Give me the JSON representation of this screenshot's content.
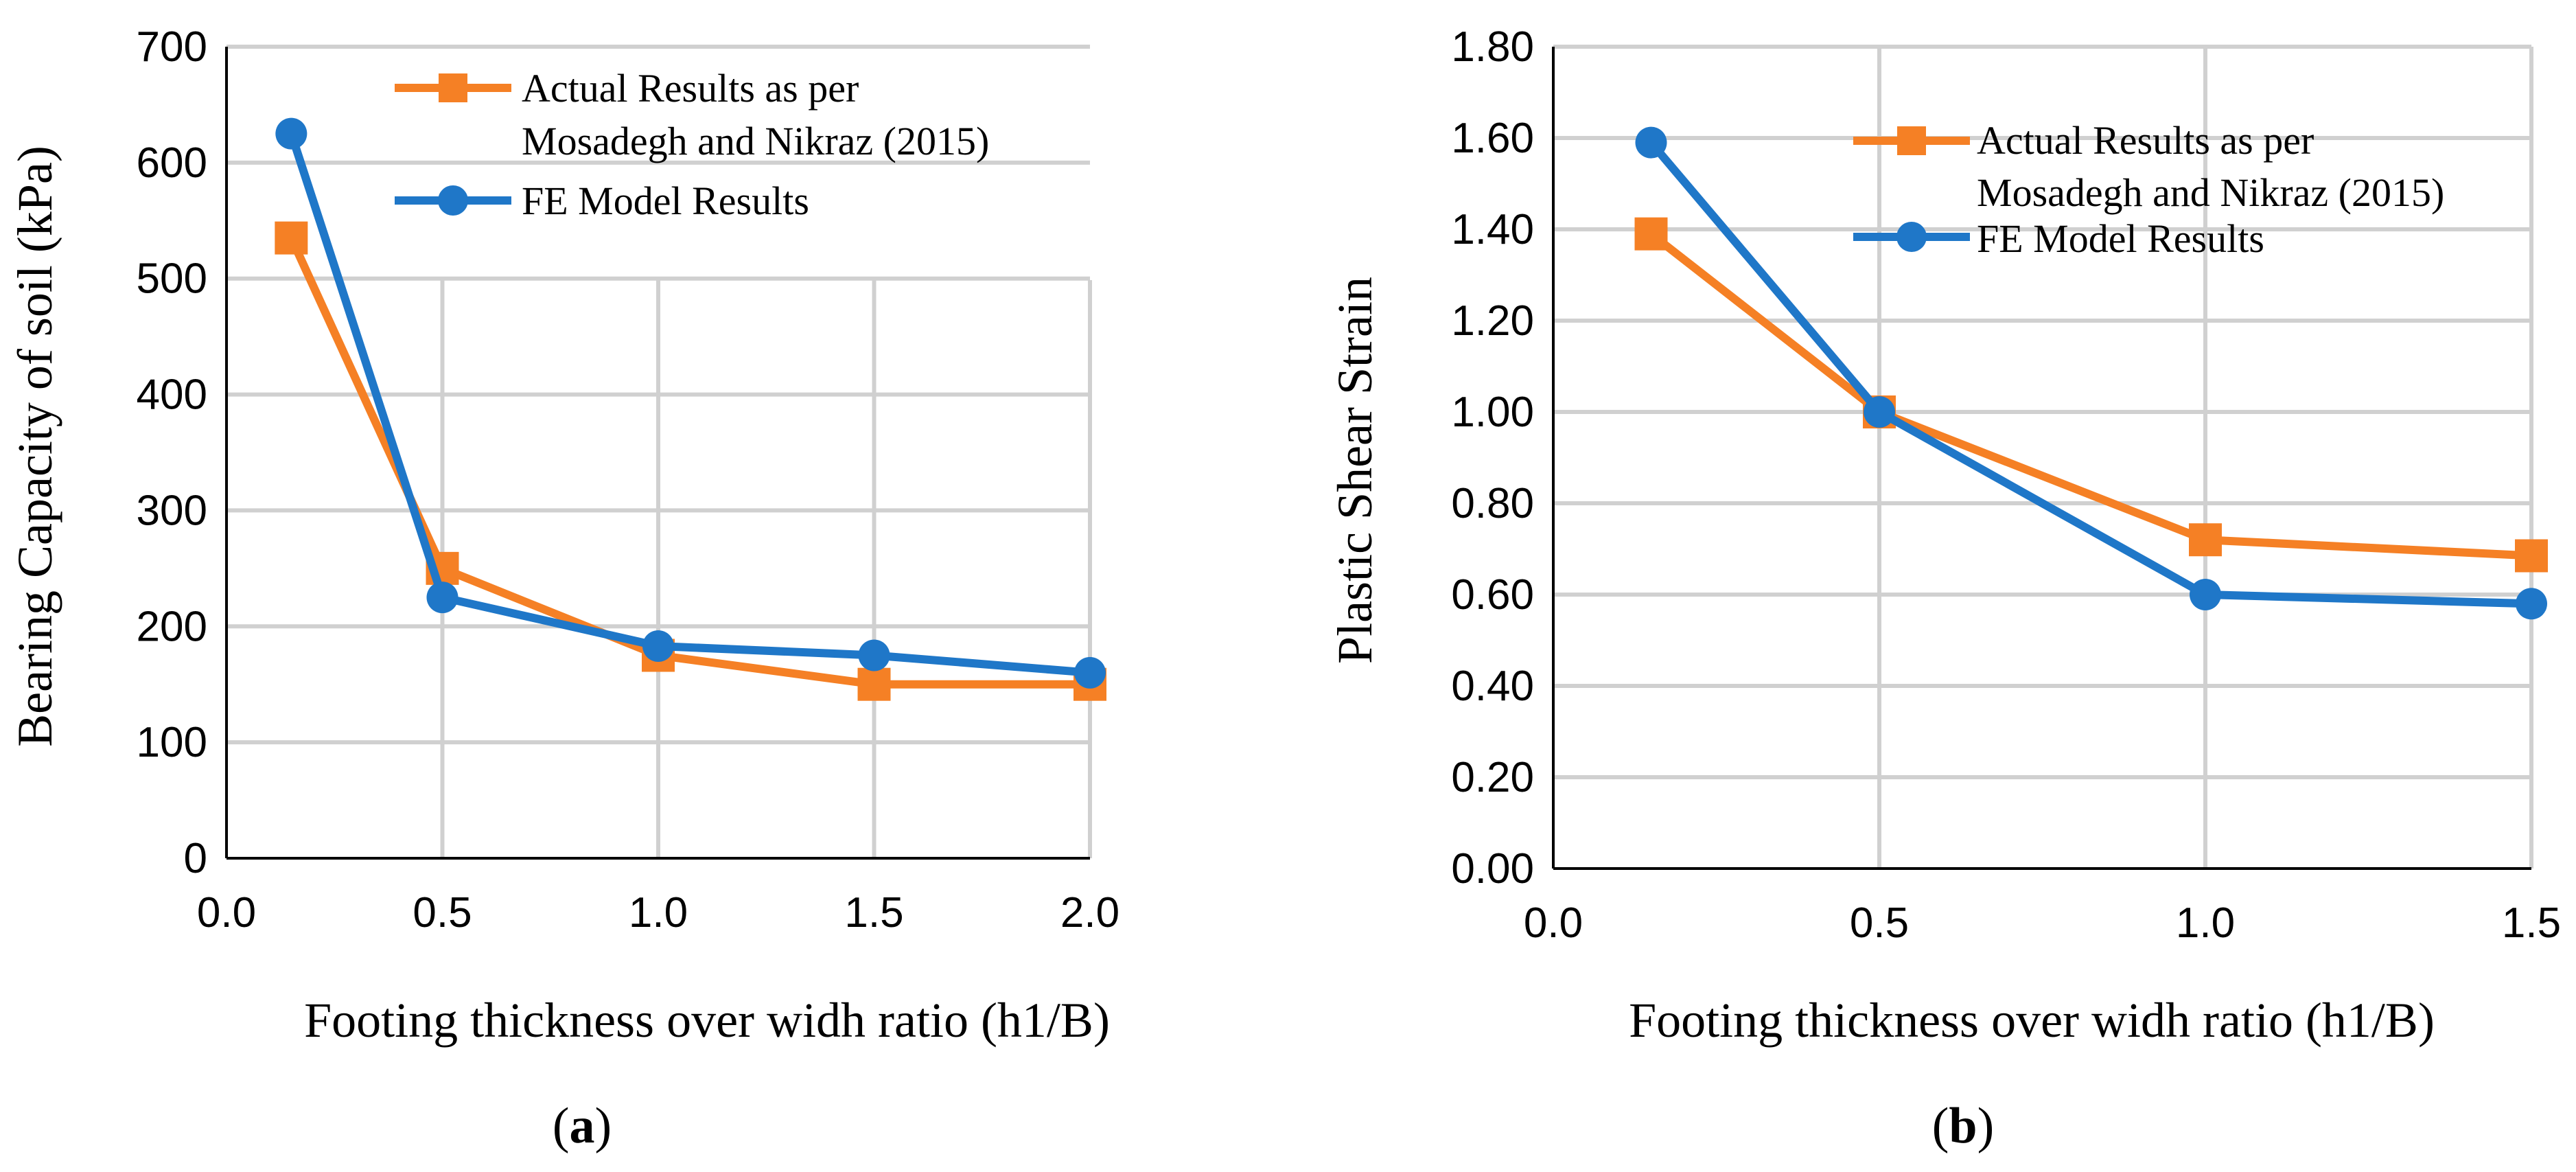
{
  "colors": {
    "orange": "#f58025",
    "blue": "#1f77c8",
    "grid": "#d0d0d0"
  },
  "chart_data": [
    {
      "id": "a",
      "type": "line",
      "caption_label": "a",
      "xlabel": "Footing thickness over widh ratio (h1/B)",
      "ylabel": "Bearing Capacity of soil (kPa)",
      "xlim": [
        0,
        2
      ],
      "ylim": [
        0,
        700
      ],
      "x_ticks": [
        "0.0",
        "0.5",
        "1.0",
        "1.5",
        "2.0"
      ],
      "y_ticks": [
        "0",
        "100",
        "200",
        "300",
        "400",
        "500",
        "600",
        "700"
      ],
      "grid": "vertical+horizontal",
      "legend_position": "top-right",
      "series": [
        {
          "name_line1": "Actual Results as per",
          "name_line2": "Mosadegh and Nikraz (2015)",
          "marker": "square",
          "color": "#f58025",
          "points": [
            [
              0.15,
              535
            ],
            [
              0.5,
              250
            ],
            [
              1.0,
              175
            ],
            [
              1.5,
              150
            ],
            [
              2.0,
              150
            ]
          ]
        },
        {
          "name_line1": "FE Model Results",
          "name_line2": "",
          "marker": "circle",
          "color": "#1f77c8",
          "points": [
            [
              0.15,
              625
            ],
            [
              0.5,
              225
            ],
            [
              1.0,
              183
            ],
            [
              1.5,
              175
            ],
            [
              2.0,
              160
            ]
          ]
        }
      ]
    },
    {
      "id": "b",
      "type": "line",
      "caption_label": "b",
      "xlabel": "Footing thickness over widh ratio (h1/B)",
      "ylabel": "Plastic Shear Strain",
      "xlim": [
        0,
        1.5
      ],
      "ylim": [
        0,
        1.8
      ],
      "x_ticks": [
        "0.0",
        "0.5",
        "1.0",
        "1.5"
      ],
      "y_ticks": [
        "0.00",
        "0.20",
        "0.40",
        "0.60",
        "0.80",
        "1.00",
        "1.20",
        "1.40",
        "1.60",
        "1.80"
      ],
      "grid": "vertical+horizontal",
      "legend_position": "top-right",
      "series": [
        {
          "name_line1": "Actual Results as per",
          "name_line2": "Mosadegh and Nikraz (2015)",
          "marker": "square",
          "color": "#f58025",
          "points": [
            [
              0.15,
              1.39
            ],
            [
              0.5,
              1.0
            ],
            [
              1.0,
              0.72
            ],
            [
              1.5,
              0.685
            ]
          ]
        },
        {
          "name_line1": "FE Model Results",
          "name_line2": "",
          "marker": "circle",
          "color": "#1f77c8",
          "points": [
            [
              0.15,
              1.59
            ],
            [
              0.5,
              1.0
            ],
            [
              1.0,
              0.6
            ],
            [
              1.5,
              0.58
            ]
          ]
        }
      ]
    }
  ]
}
